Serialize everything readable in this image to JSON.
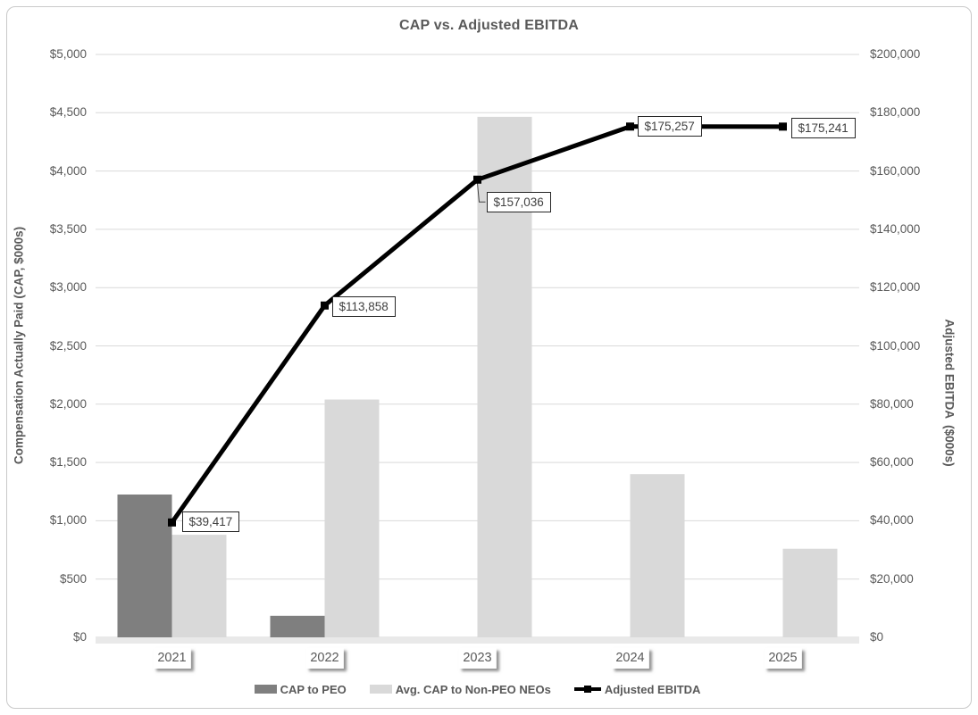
{
  "chart_data": {
    "type": "combo_bar_line",
    "title": "CAP vs. Adjusted EBITDA",
    "categories": [
      "2021",
      "2022",
      "2023",
      "2024",
      "2025"
    ],
    "series": [
      {
        "name": "CAP to PEO",
        "type": "bar",
        "axis": "left",
        "color": "#7f7f7f",
        "values": [
          1225,
          185,
          0,
          0,
          0
        ]
      },
      {
        "name": "Avg. CAP to Non-PEO NEOs",
        "type": "bar",
        "axis": "left",
        "color": "#d9d9d9",
        "values": [
          880,
          2040,
          4465,
          1400,
          760
        ]
      },
      {
        "name": "Adjusted EBITDA",
        "type": "line",
        "axis": "right",
        "color": "#000000",
        "marker": "square",
        "values": [
          39417,
          113858,
          157036,
          175257,
          175241
        ],
        "data_labels": [
          "$39,417",
          "$113,858",
          "$157,036",
          "$175,257",
          "$175,241"
        ]
      }
    ],
    "left_axis": {
      "title": "Compensation Actually Paid (CAP, $000s)",
      "min": 0,
      "max": 5000,
      "step": 500
    },
    "right_axis": {
      "title": "Adjusted EBITDA  ($000s)",
      "min": 0,
      "max": 200000,
      "step": 20000
    },
    "legend_position": "bottom",
    "grid": true,
    "colors": {
      "text": "#595959",
      "gridline": "#d9d9d9",
      "axis_band": "#e9e9e9",
      "label_border": "#262626",
      "line": "#000000"
    }
  }
}
